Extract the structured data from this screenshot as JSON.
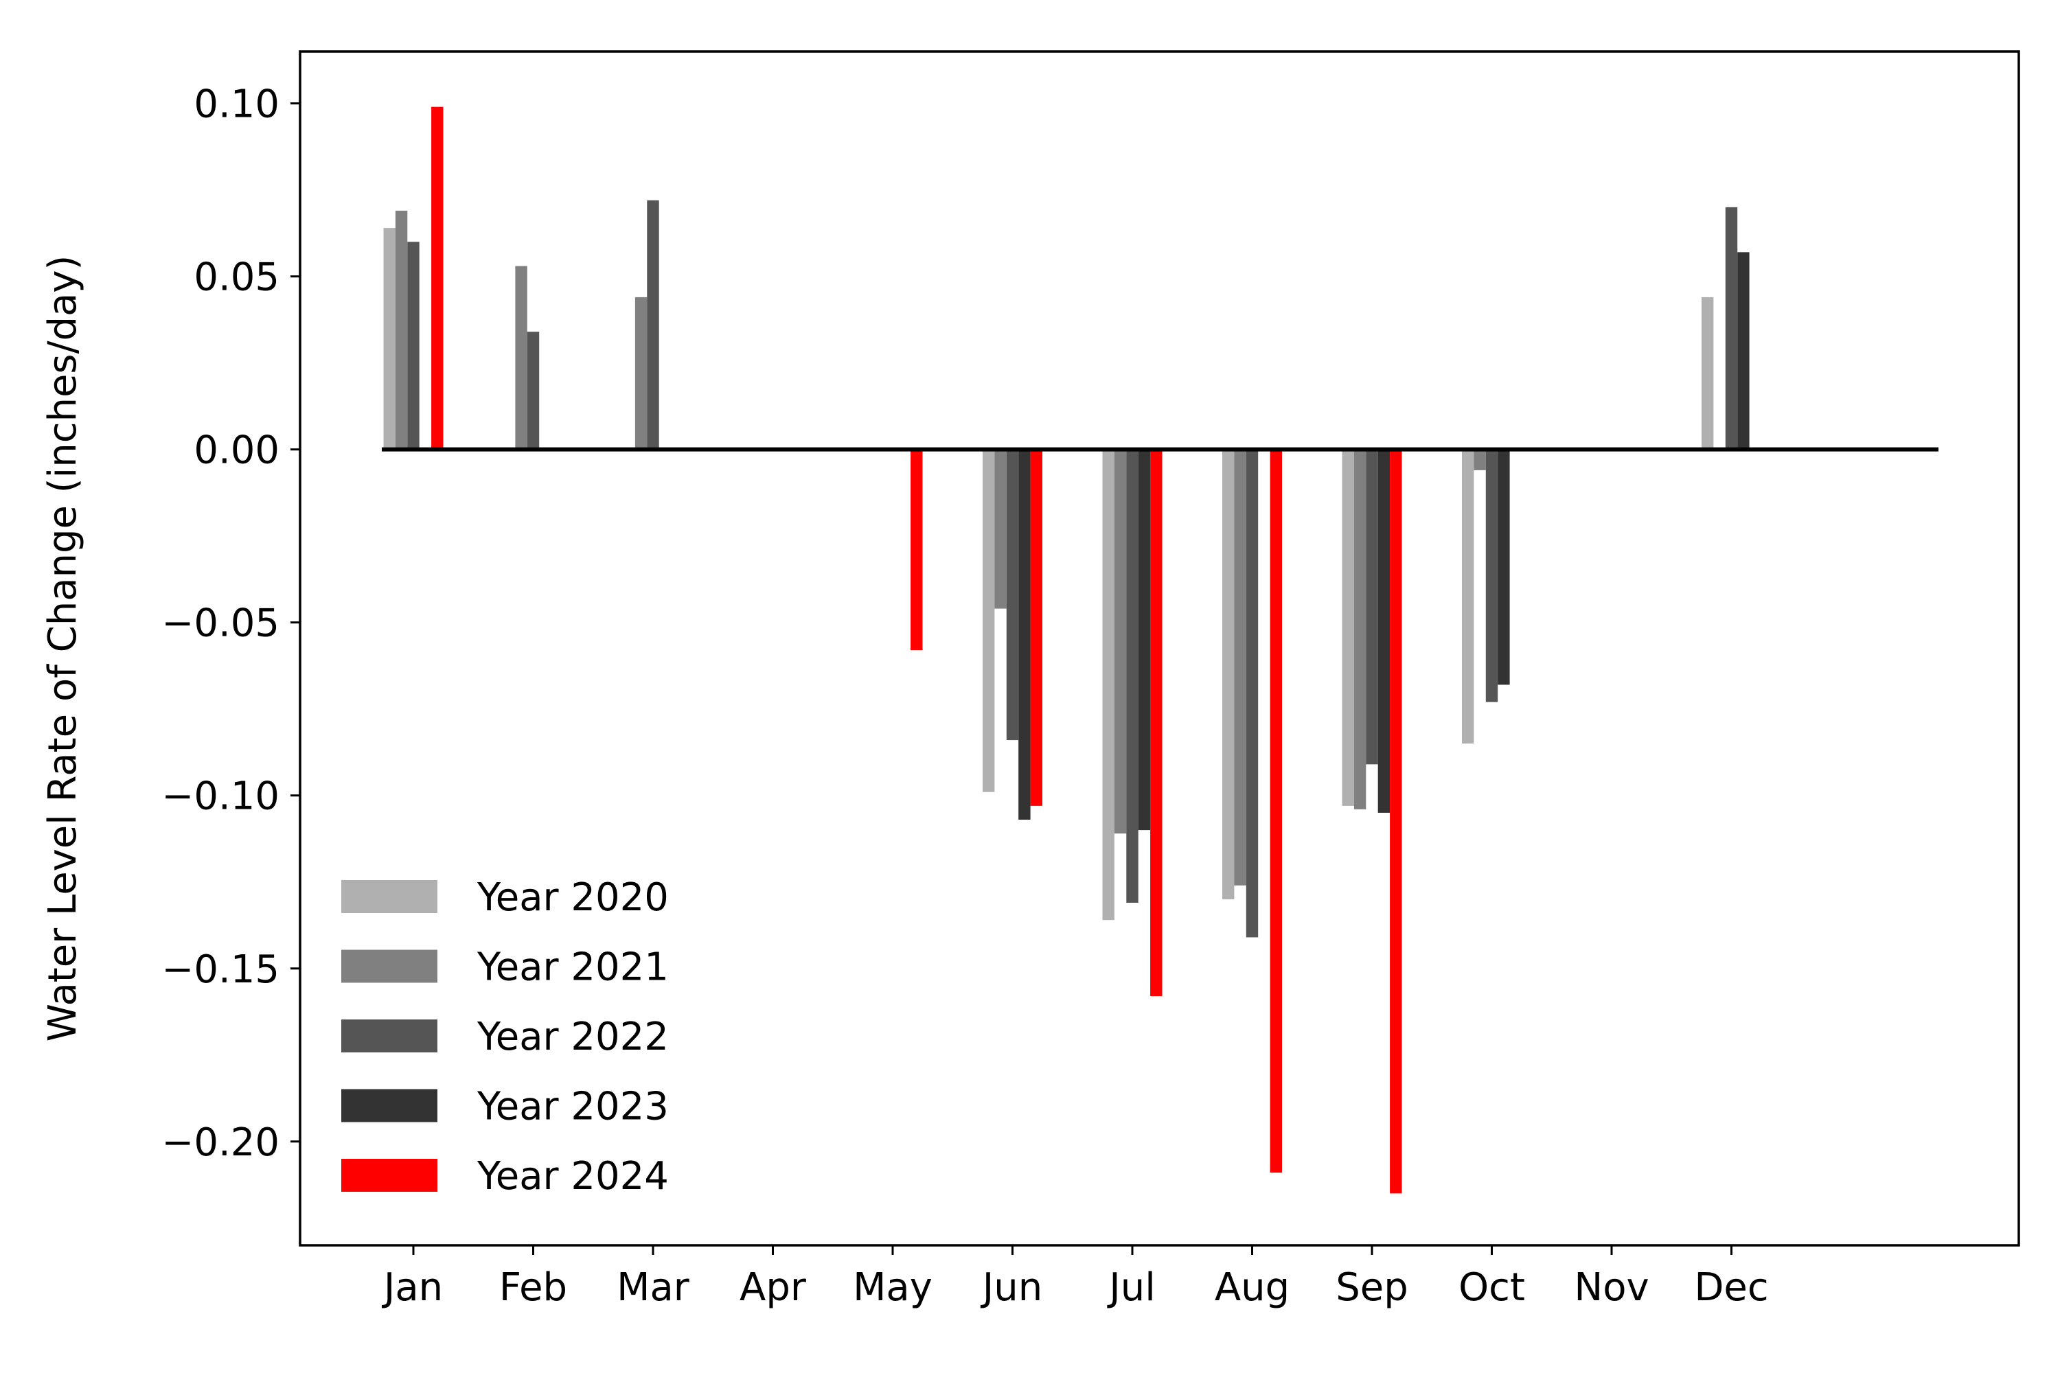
{
  "chart_data": {
    "type": "bar",
    "title": "",
    "xlabel": "",
    "ylabel": "Water Level Rate of Change (inches/day)",
    "categories": [
      "Jan",
      "Feb",
      "Mar",
      "Apr",
      "May",
      "Jun",
      "Jul",
      "Aug",
      "Sep",
      "Oct",
      "Nov",
      "Dec"
    ],
    "ylim": [
      -0.23,
      0.115
    ],
    "yticks": [
      0.1,
      0.05,
      0.0,
      -0.05,
      -0.1,
      -0.15,
      -0.2
    ],
    "ytick_labels": [
      "0.10",
      "0.05",
      "0.00",
      "−0.05",
      "−0.10",
      "−0.15",
      "−0.20"
    ],
    "grid": false,
    "legend_position": "lower-left",
    "zero_line_color": "#000000",
    "series": [
      {
        "name": "Year 2020",
        "color": "#b0b0b0",
        "values": [
          0.064,
          null,
          null,
          null,
          null,
          -0.099,
          -0.136,
          -0.13,
          -0.103,
          -0.085,
          null,
          0.044
        ]
      },
      {
        "name": "Year 2021",
        "color": "#808080",
        "values": [
          0.069,
          0.053,
          0.044,
          null,
          null,
          -0.046,
          -0.111,
          -0.126,
          -0.104,
          -0.006,
          null,
          null
        ]
      },
      {
        "name": "Year 2022",
        "color": "#555555",
        "values": [
          0.06,
          0.034,
          0.072,
          null,
          null,
          -0.084,
          -0.131,
          -0.141,
          -0.091,
          -0.073,
          null,
          0.07
        ]
      },
      {
        "name": "Year 2023",
        "color": "#333333",
        "values": [
          null,
          null,
          null,
          null,
          null,
          -0.107,
          -0.11,
          null,
          -0.105,
          -0.068,
          null,
          0.057
        ]
      },
      {
        "name": "Year 2024",
        "color": "#ff0000",
        "values": [
          0.099,
          null,
          null,
          null,
          -0.058,
          -0.103,
          -0.158,
          -0.209,
          -0.215,
          null,
          null,
          null
        ]
      }
    ]
  }
}
